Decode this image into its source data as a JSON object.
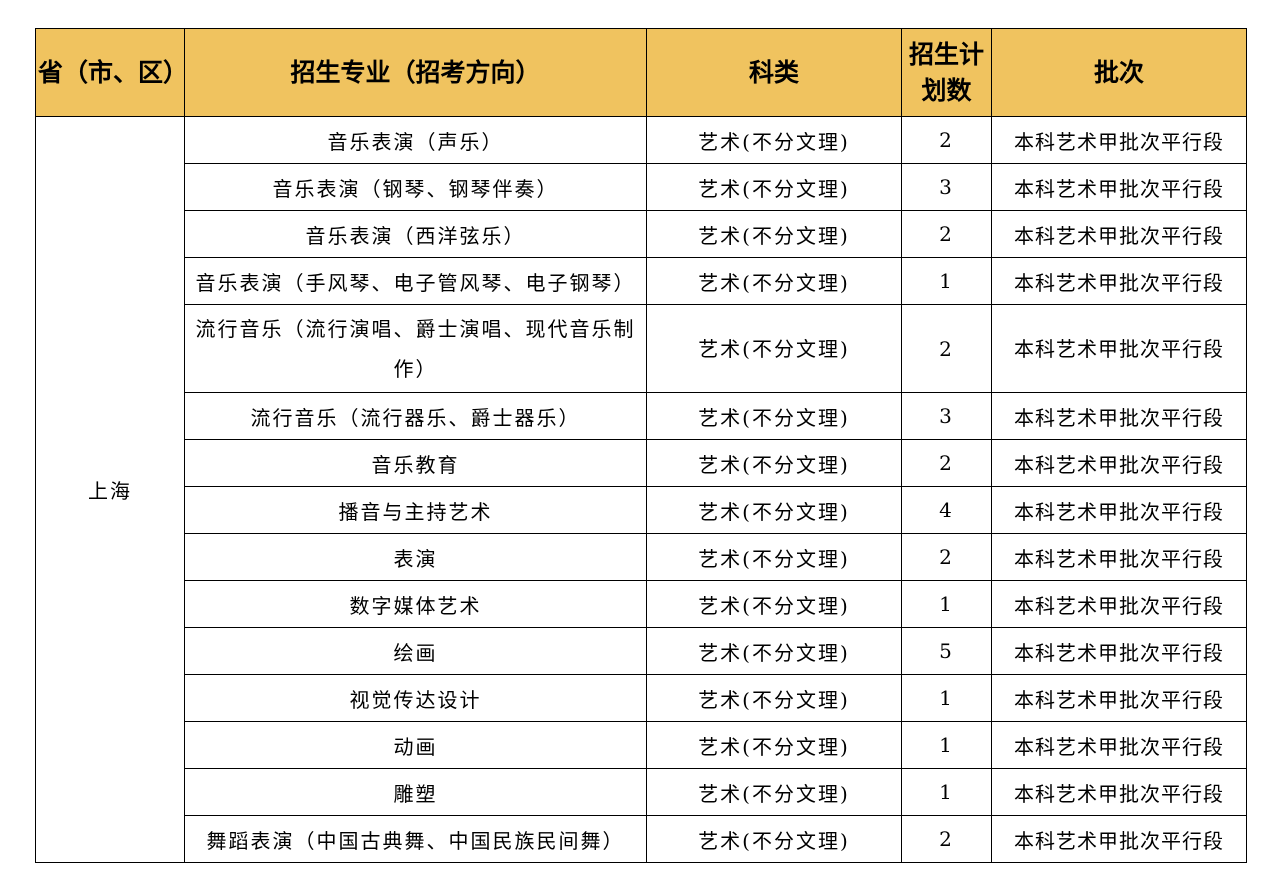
{
  "table": {
    "headers": [
      "省（市、区）",
      "招生专业（招考方向）",
      "科类",
      "招生计划数",
      "批次"
    ],
    "province": "上海",
    "rows": [
      {
        "major": "音乐表演（声乐）",
        "category": "艺术(不分文理)",
        "plan": "2",
        "batch": "本科艺术甲批次平行段"
      },
      {
        "major": "音乐表演（钢琴、钢琴伴奏）",
        "category": "艺术(不分文理)",
        "plan": "3",
        "batch": "本科艺术甲批次平行段"
      },
      {
        "major": "音乐表演（西洋弦乐）",
        "category": "艺术(不分文理)",
        "plan": "2",
        "batch": "本科艺术甲批次平行段"
      },
      {
        "major": "音乐表演（手风琴、电子管风琴、电子钢琴）",
        "category": "艺术(不分文理)",
        "plan": "1",
        "batch": "本科艺术甲批次平行段"
      },
      {
        "major": "流行音乐（流行演唱、爵士演唱、现代音乐制作）",
        "category": "艺术(不分文理)",
        "plan": "2",
        "batch": "本科艺术甲批次平行段"
      },
      {
        "major": "流行音乐（流行器乐、爵士器乐）",
        "category": "艺术(不分文理)",
        "plan": "3",
        "batch": "本科艺术甲批次平行段"
      },
      {
        "major": "音乐教育",
        "category": "艺术(不分文理)",
        "plan": "2",
        "batch": "本科艺术甲批次平行段"
      },
      {
        "major": "播音与主持艺术",
        "category": "艺术(不分文理)",
        "plan": "4",
        "batch": "本科艺术甲批次平行段"
      },
      {
        "major": "表演",
        "category": "艺术(不分文理)",
        "plan": "2",
        "batch": "本科艺术甲批次平行段"
      },
      {
        "major": "数字媒体艺术",
        "category": "艺术(不分文理)",
        "plan": "1",
        "batch": "本科艺术甲批次平行段"
      },
      {
        "major": "绘画",
        "category": "艺术(不分文理)",
        "plan": "5",
        "batch": "本科艺术甲批次平行段"
      },
      {
        "major": "视觉传达设计",
        "category": "艺术(不分文理)",
        "plan": "1",
        "batch": "本科艺术甲批次平行段"
      },
      {
        "major": "动画",
        "category": "艺术(不分文理)",
        "plan": "1",
        "batch": "本科艺术甲批次平行段"
      },
      {
        "major": "雕塑",
        "category": "艺术(不分文理)",
        "plan": "1",
        "batch": "本科艺术甲批次平行段"
      },
      {
        "major": "舞蹈表演（中国古典舞、中国民族民间舞）",
        "category": "艺术(不分文理)",
        "plan": "2",
        "batch": "本科艺术甲批次平行段"
      }
    ]
  },
  "colors": {
    "header_bg": "#F0C35F"
  }
}
